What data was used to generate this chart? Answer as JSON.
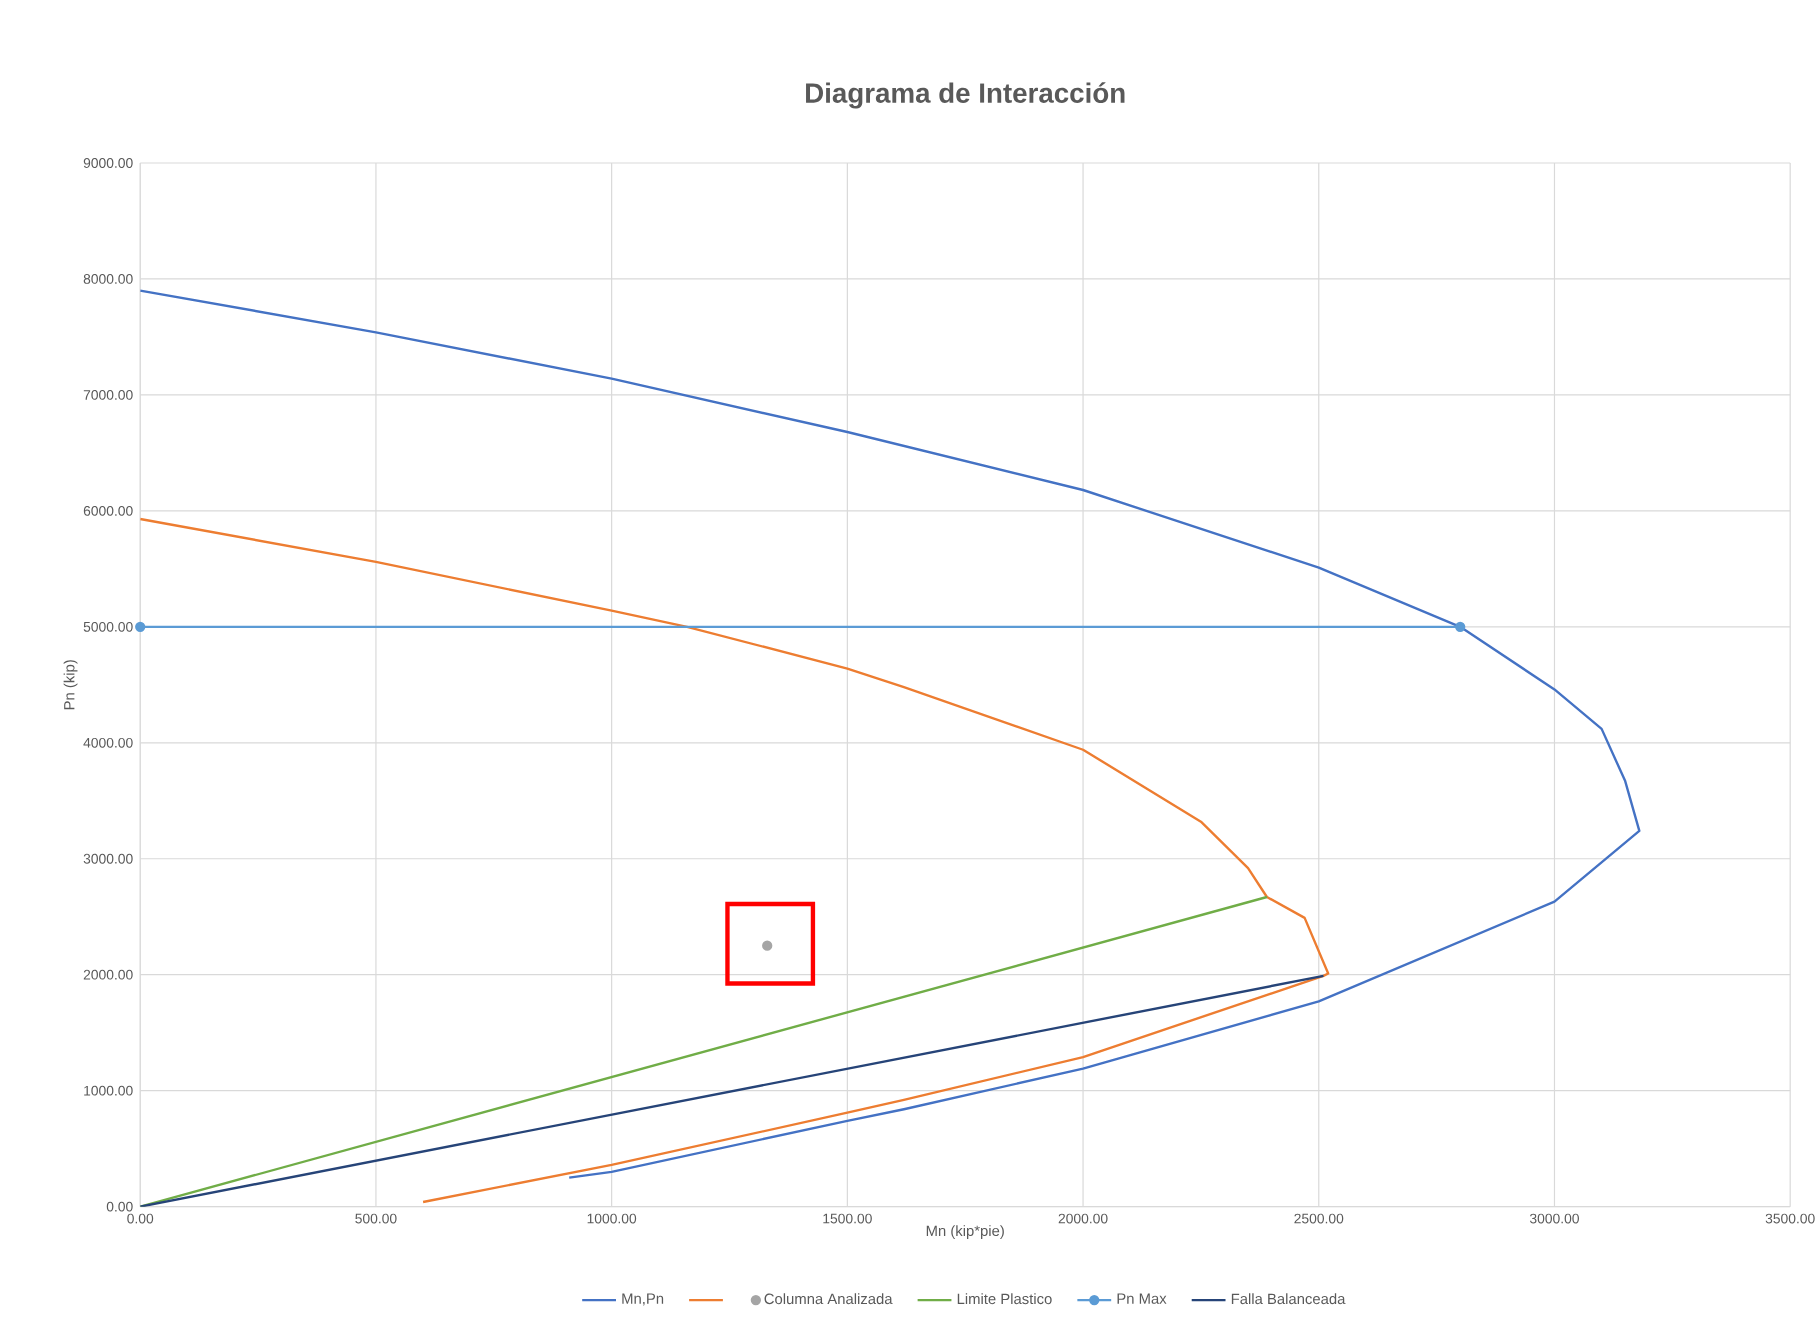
{
  "chart_data": {
    "type": "line",
    "title": "Diagrama de Interacción",
    "xlabel": "Mn (kip*pie)",
    "ylabel": "Pn (kip)",
    "xlim": [
      0,
      3500
    ],
    "ylim": [
      0,
      9000
    ],
    "xticks": [
      {
        "value": 0,
        "label": "0.00"
      },
      {
        "value": 500,
        "label": "500.00"
      },
      {
        "value": 1000,
        "label": "1000.00"
      },
      {
        "value": 1500,
        "label": "1500.00"
      },
      {
        "value": 2000,
        "label": "2000.00"
      },
      {
        "value": 2500,
        "label": "2500.00"
      },
      {
        "value": 3000,
        "label": "3000.00"
      },
      {
        "value": 3500,
        "label": "3500.00"
      }
    ],
    "yticks": [
      {
        "value": 0,
        "label": "0.00"
      },
      {
        "value": 1000,
        "label": "1000.00"
      },
      {
        "value": 2000,
        "label": "2000.00"
      },
      {
        "value": 3000,
        "label": "3000.00"
      },
      {
        "value": 4000,
        "label": "4000.00"
      },
      {
        "value": 5000,
        "label": "5000.00"
      },
      {
        "value": 6000,
        "label": "6000.00"
      },
      {
        "value": 7000,
        "label": "7000.00"
      },
      {
        "value": 8000,
        "label": "8000.00"
      },
      {
        "value": 9000,
        "label": "9000.00"
      }
    ],
    "grid": true,
    "legend": "bottom",
    "series": [
      {
        "name": "Mn,Pn",
        "color": "#4472c4",
        "marker": "none",
        "x": [
          0,
          500,
          1000,
          1500,
          2000,
          2500,
          2800,
          3000,
          3100,
          3150,
          3180,
          3000,
          2500,
          2000,
          1620,
          1500,
          1000,
          910
        ],
        "values": [
          7900,
          7540,
          7140,
          6680,
          6180,
          5510,
          5000,
          4460,
          4120,
          3670,
          3240,
          2630,
          1770,
          1190,
          840,
          740,
          300,
          250
        ]
      },
      {
        "color": "#ed7d31",
        "marker": "none",
        "x": [
          0,
          500,
          1000,
          1160,
          1500,
          1620,
          2000,
          2250,
          2350,
          2390,
          2470,
          2520,
          2510,
          2000,
          1620,
          1500,
          1000,
          600
        ],
        "values": [
          5930,
          5560,
          5140,
          5000,
          4640,
          4480,
          3940,
          3320,
          2920,
          2670,
          2490,
          2010,
          1990,
          1290,
          920,
          810,
          360,
          40
        ]
      },
      {
        "name": "Columna Analizada",
        "type": "scatter",
        "color": "#a5a5a5",
        "marker": "circle",
        "x": [
          1330
        ],
        "values": [
          2250
        ]
      },
      {
        "name": "Limite Plastico",
        "color": "#70ad47",
        "marker": "none",
        "x": [
          0,
          2390
        ],
        "values": [
          0,
          2670
        ]
      },
      {
        "name": "Pn Max",
        "color": "#5b9bd5",
        "marker": "circle",
        "x": [
          0,
          2800
        ],
        "values": [
          5000,
          5000
        ]
      },
      {
        "name": "Falla Balanceada",
        "color": "#264478",
        "marker": "none",
        "x": [
          0,
          2510
        ],
        "values": [
          0,
          1990
        ]
      }
    ]
  }
}
